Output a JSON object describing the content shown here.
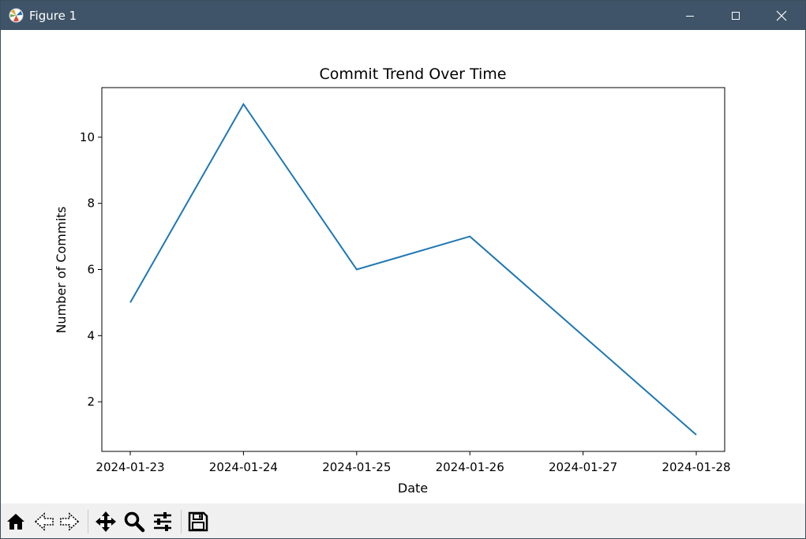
{
  "window": {
    "title": "Figure 1",
    "titlebar_color": "#3f5468",
    "controls": [
      "minimize-icon",
      "maximize-icon",
      "close-icon"
    ]
  },
  "toolbar": {
    "tools": [
      "home-icon",
      "back-arrow-icon",
      "forward-arrow-icon",
      "pan-icon",
      "zoom-icon",
      "configure-subplots-icon",
      "save-icon"
    ]
  },
  "chart_data": {
    "type": "line",
    "title": "Commit Trend Over Time",
    "xlabel": "Date",
    "ylabel": "Number of Commits",
    "x": [
      "2024-01-23",
      "2024-01-24",
      "2024-01-25",
      "2024-01-26",
      "2024-01-27",
      "2024-01-28"
    ],
    "x_ticks": [
      "2024-01-23",
      "2024-01-24",
      "2024-01-25",
      "2024-01-26",
      "2024-01-27",
      "2024-01-28"
    ],
    "series": [
      {
        "values": [
          5,
          11,
          6,
          7,
          4,
          1
        ],
        "color": "#1f77b4"
      }
    ],
    "y_ticks": [
      2,
      4,
      6,
      8,
      10
    ],
    "ylim": [
      0.5,
      11.5
    ],
    "grid": false
  }
}
